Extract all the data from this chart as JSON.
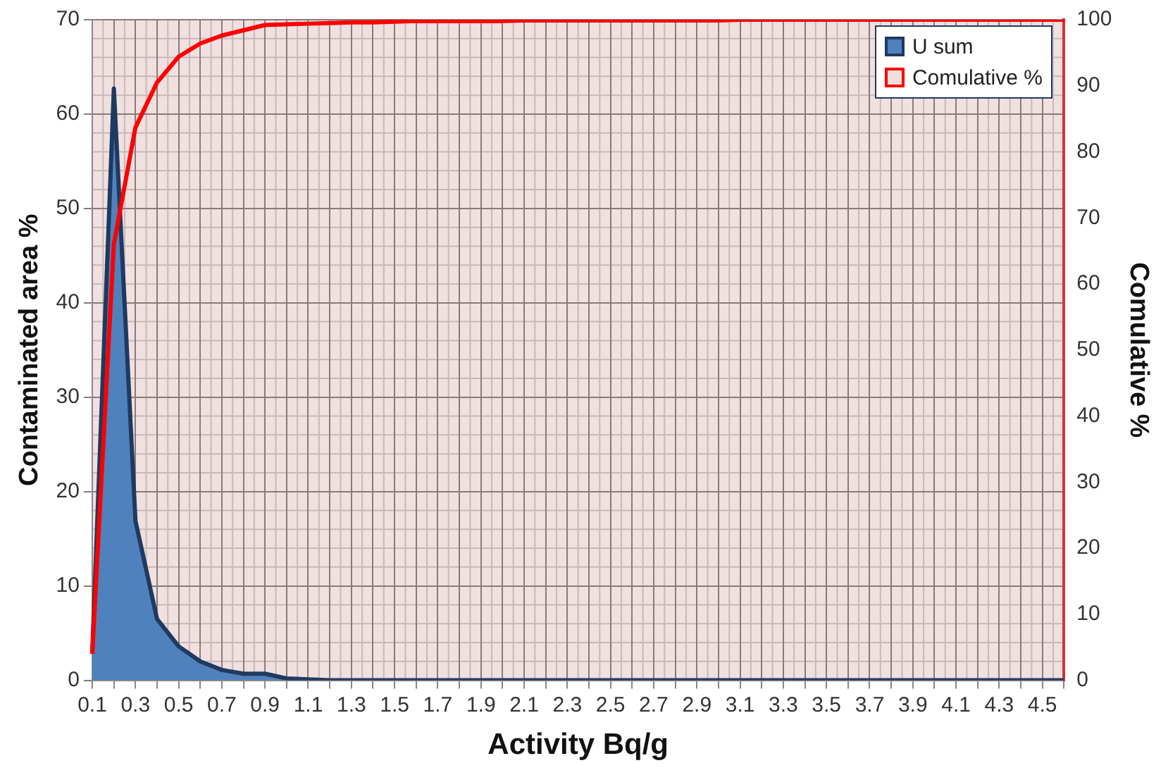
{
  "chart_data": {
    "type": "area",
    "xlabel": "Activity Bq/g",
    "ylabel": "Contaminated area %",
    "y2label": "Comulative %",
    "categories": [
      "0.1",
      null,
      "0.3",
      null,
      "0.5",
      null,
      "0.7",
      null,
      "0.9",
      null,
      "1.1",
      null,
      "1.3",
      null,
      "1.5",
      null,
      "1.7",
      null,
      "1.9",
      null,
      "2.1",
      null,
      "2.3",
      null,
      "2.5",
      null,
      "2.7",
      null,
      "2.9",
      null,
      "3.1",
      null,
      "3.3",
      null,
      "3.5",
      null,
      "3.7",
      null,
      "3.9",
      null,
      "4.1",
      null,
      "4.3",
      null,
      "4.5",
      null
    ],
    "series": [
      {
        "name": "U sum",
        "type": "area",
        "color": "#4f81bd",
        "values": [
          3,
          62.7,
          16.9,
          6.5,
          3.6,
          2.0,
          1.1,
          0.7,
          0.7,
          0.2,
          0.1,
          0,
          0,
          0,
          0,
          0,
          0,
          0,
          0,
          0,
          0,
          0,
          0,
          0,
          0,
          0,
          0,
          0,
          0,
          0,
          0,
          0,
          0,
          0,
          0,
          0,
          0,
          0,
          0,
          0,
          0,
          0,
          0,
          0,
          0,
          0
        ]
      },
      {
        "name": "Comulative %",
        "type": "line",
        "axis": "y2",
        "color": "#ff0000",
        "values": [
          4,
          66,
          83.7,
          90.5,
          94.4,
          96.4,
          97.6,
          98.4,
          99.2,
          99.3,
          99.4,
          99.5,
          99.6,
          99.6,
          99.7,
          99.8,
          99.8,
          99.8,
          99.8,
          99.8,
          99.9,
          99.9,
          99.9,
          99.9,
          99.9,
          99.9,
          99.9,
          99.9,
          99.9,
          99.9,
          100,
          100,
          100,
          100,
          100,
          100,
          100,
          100,
          100,
          100,
          100,
          100,
          100,
          100,
          100,
          100
        ]
      }
    ],
    "ylim": [
      0,
      70
    ],
    "yticks": [
      0,
      10,
      20,
      30,
      40,
      50,
      60,
      70
    ],
    "y2lim": [
      0,
      100
    ],
    "y2ticks": [
      0,
      10,
      20,
      30,
      40,
      50,
      60,
      70,
      80,
      90,
      100
    ],
    "grid": true,
    "legend": "top right",
    "marker": "none"
  }
}
